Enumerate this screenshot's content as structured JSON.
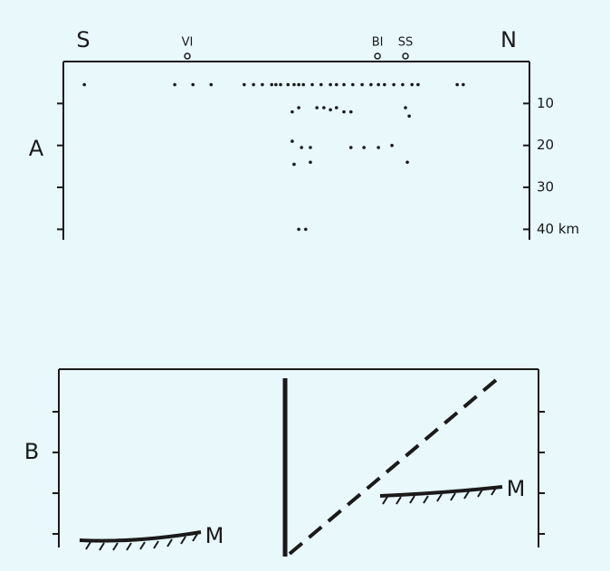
{
  "chart_data": {
    "type": "scatter",
    "left_label": "S",
    "right_label": "N",
    "panel_label": "A",
    "x": [
      4.5,
      23.9,
      27.8,
      31.7,
      38.8,
      40.8,
      42.7,
      44.7,
      45.6,
      46.6,
      48.2,
      49.5,
      50.5,
      51.5,
      53.4,
      55.3,
      57.3,
      58.6,
      60.2,
      62.1,
      64.1,
      66,
      67.6,
      68.9,
      70.9,
      72.8,
      74.8,
      76.1,
      84.5,
      85.8,
      49.1,
      50.5,
      54.4,
      55.9,
      57.3,
      58.6,
      60.2,
      61.7,
      73.4,
      74.2,
      49.1,
      51.1,
      53,
      61.7,
      64.5,
      67.6,
      70.5,
      49.5,
      53,
      73.8,
      50.5,
      52
    ],
    "values": [
      5.5,
      5.5,
      5.5,
      5.5,
      5.5,
      5.5,
      5.5,
      5.5,
      5.5,
      5.5,
      5.5,
      5.5,
      5.5,
      5.5,
      5.5,
      5.5,
      5.5,
      5.5,
      5.5,
      5.5,
      5.5,
      5.5,
      5.5,
      5.5,
      5.5,
      5.5,
      5.5,
      5.5,
      5.5,
      5.5,
      12,
      11,
      11,
      11,
      11.5,
      11,
      12,
      12,
      11,
      13,
      19,
      20.5,
      20.5,
      20.5,
      20.5,
      20.5,
      20,
      24.5,
      24,
      24,
      40,
      40
    ],
    "color": "#1a1a1a",
    "xlim": [
      0,
      100
    ],
    "ylim": [
      0,
      42.5
    ],
    "y_inverted": true,
    "yticks": [
      10,
      20,
      30,
      {
        "value": 40,
        "label": "40 km"
      }
    ],
    "annotations": [
      {
        "text": "VI",
        "x": 26.6
      },
      {
        "text": "BI",
        "x": 67.4
      },
      {
        "text": "SS",
        "x": 73.4
      }
    ]
  },
  "panel_b": {
    "panel_label": "B",
    "moho_labels": [
      "M",
      "M"
    ]
  }
}
